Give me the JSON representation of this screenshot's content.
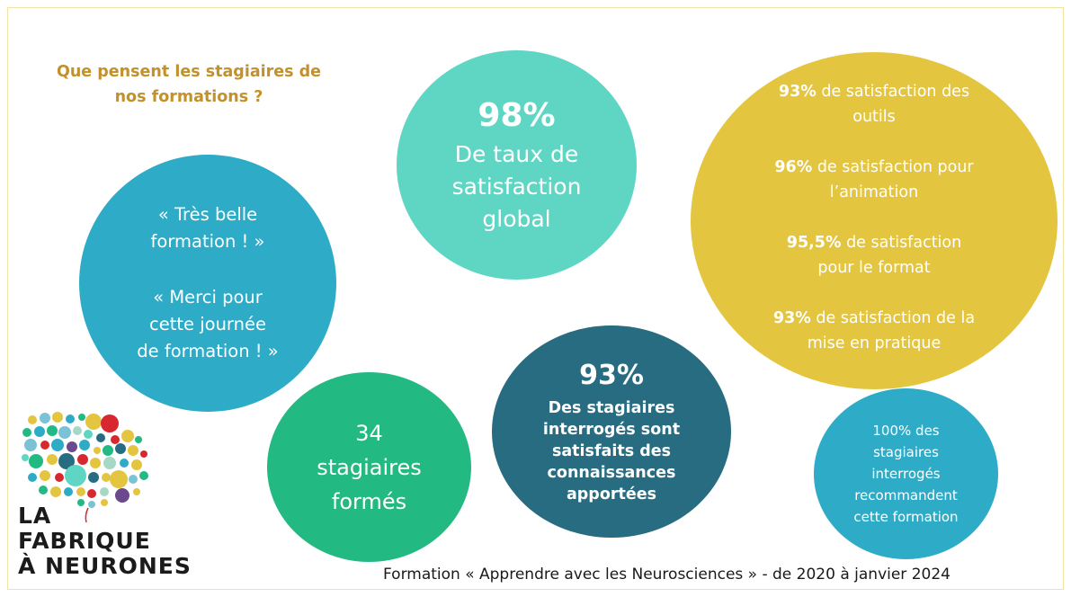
{
  "heading": {
    "line1": "Que pensent les stagiaires de",
    "line2": "nos formations ?"
  },
  "quotes": {
    "q1_line1": "« Très belle",
    "q1_line2": "formation ! »",
    "q2_line1": "« Merci pour",
    "q2_line2": "cette journée",
    "q2_line3": "de formation ! »"
  },
  "global": {
    "value": "98%",
    "line1": "De taux de",
    "line2": "satisfaction",
    "line3": "global"
  },
  "details": [
    {
      "value": "93%",
      "text1": " de satisfaction des",
      "text2": "outils"
    },
    {
      "value": "96%",
      "text1": " de satisfaction pour",
      "text2": "l’animation"
    },
    {
      "value": "95,5%",
      "text1": " de satisfaction",
      "text2": "pour le format"
    },
    {
      "value": "93%",
      "text1": " de satisfaction de la",
      "text2": "mise en pratique"
    }
  ],
  "trained": {
    "line1": "34",
    "line2": "stagiaires",
    "line3": "formés"
  },
  "knowledge": {
    "value": "93%",
    "line1": "Des stagiaires",
    "line2": "interrogés sont",
    "line3": "satisfaits des",
    "line4": "connaissances",
    "line5": "apportées"
  },
  "recommend": {
    "line1": "100% des",
    "line2": "stagiaires",
    "line3": "interrogés",
    "line4": "recommandent",
    "line5": "cette formation"
  },
  "footer": "Formation « Apprendre avec les Neurosciences » -  de 2020 à janvier 2024",
  "logo": {
    "line1": "LA",
    "line2": "FABRIQUE",
    "line3": "À NEURONES"
  },
  "colors": {
    "heading": "#c2912c",
    "blue": "#2eabc7",
    "turquoise": "#5fd6c4",
    "yellow": "#e4c53f",
    "green": "#23b983",
    "petrol": "#276c81"
  },
  "icons": {
    "logo": "brain-dots-icon"
  }
}
